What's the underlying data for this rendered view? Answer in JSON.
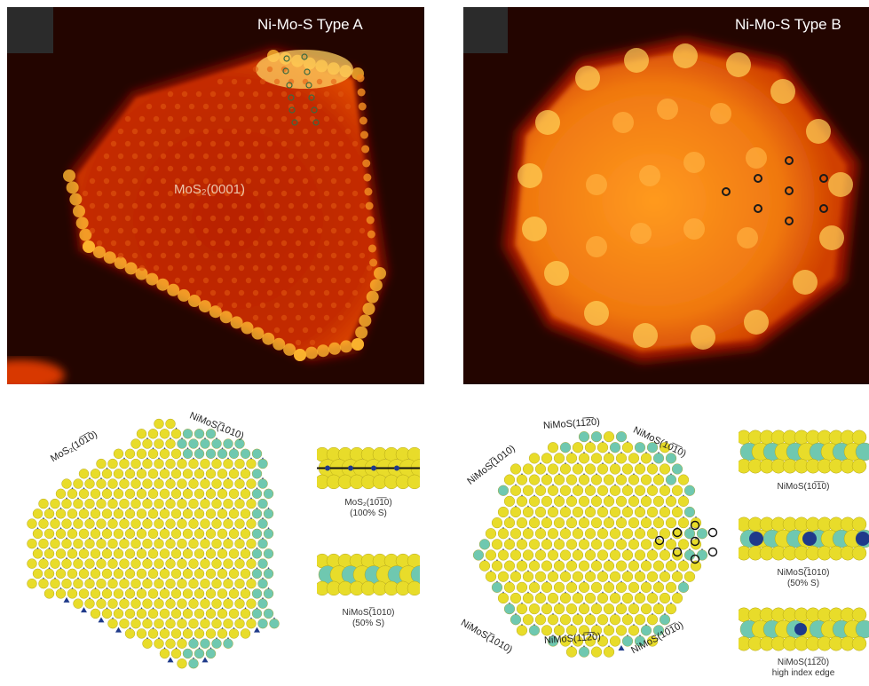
{
  "stm_a": {
    "title": "Ni-Mo-S Type A",
    "center_label": "MoS₂(0001)"
  },
  "stm_b": {
    "title": "Ni-Mo-S Type B"
  },
  "model_a": {
    "edge_mo": "MoS₂(10̅1̅0)",
    "edge_ni": "NiMoS(̅1010)"
  },
  "model_a_details": [
    {
      "caption_line1": "MoS₂(10̅1̅0)",
      "caption_line2": "(100% S)"
    },
    {
      "caption_line1": "NiMoS(̅1010)",
      "caption_line2": "(50% S)"
    }
  ],
  "model_b": {
    "edge_top_left": "NiMoS(̅1010)",
    "edge_top": "NiMoS(11̅2̅0)",
    "edge_top_right": "NiMoS(10̅1̅0)",
    "edge_bottom_left": "NiMoS(̅1010)",
    "edge_bottom": "NiMoS(11̅2̅0)",
    "edge_bottom_right": "NiMoS(10̅1̅0)"
  },
  "model_b_details": [
    {
      "caption_line1": "NiMoS(10̅1̅0)",
      "caption_line2": ""
    },
    {
      "caption_line1": "NiMoS(̅1010)",
      "caption_line2": "(50% S)"
    },
    {
      "caption_line1": "NiMoS(11̅2̅0)",
      "caption_line2": "high index edge"
    }
  ],
  "colors": {
    "sulfur": "#e8dc2a",
    "molybdenum": "#1f3a8a",
    "nickel": "#6fc8b0",
    "stm_dark": "#1a0300",
    "stm_mid": "#c22800",
    "stm_bright": "#ffd24a"
  }
}
